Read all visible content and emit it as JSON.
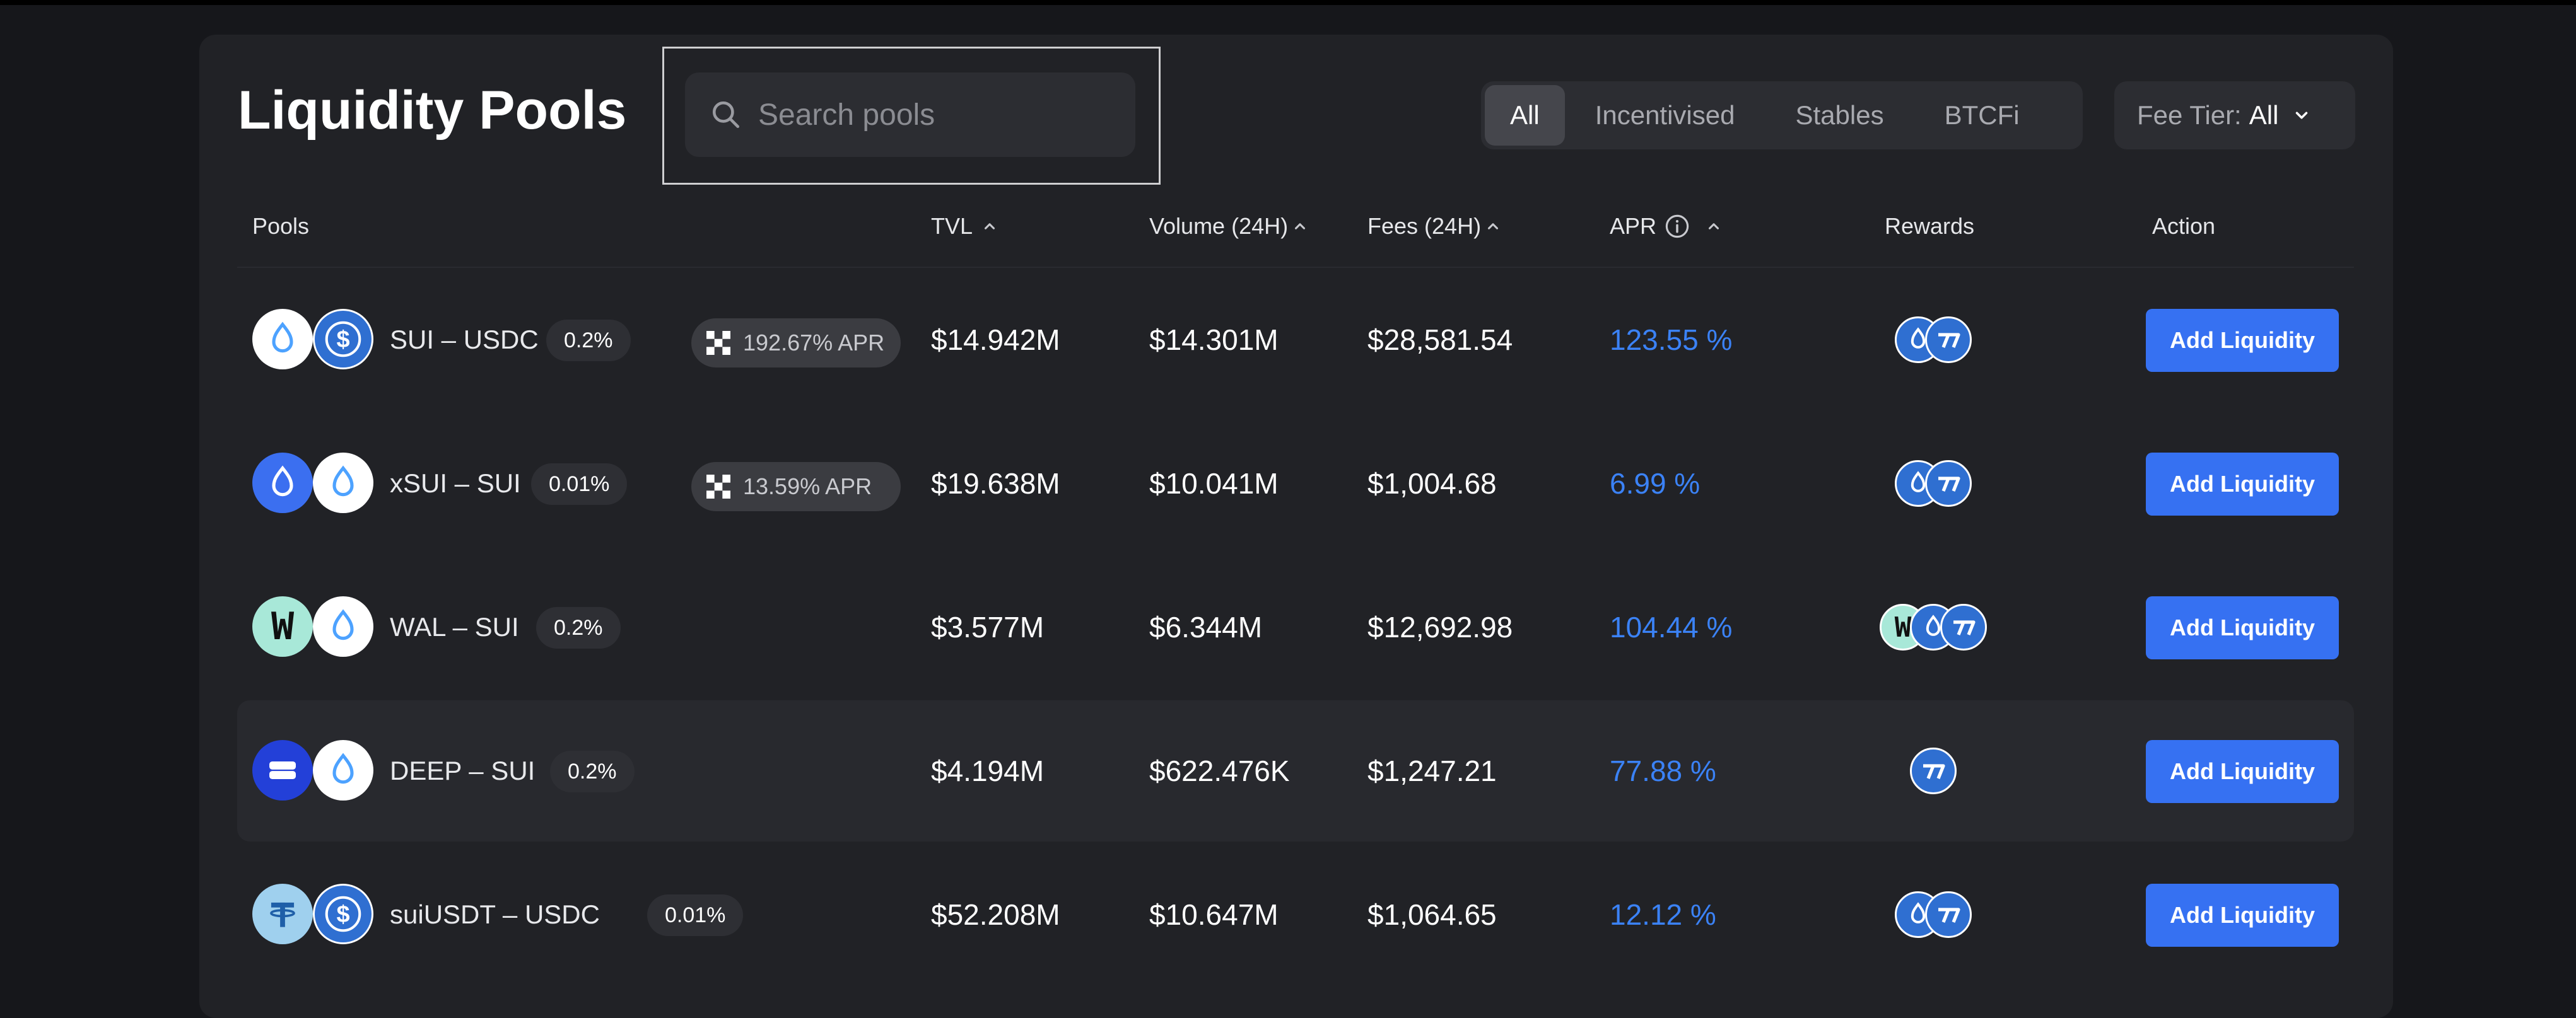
{
  "page": {
    "title": "Liquidity Pools"
  },
  "search": {
    "placeholder": "Search pools",
    "value": ""
  },
  "filters": {
    "tabs": [
      "All",
      "Incentivised",
      "Stables",
      "BTCFi"
    ],
    "active": "All"
  },
  "fee_tier": {
    "label": "Fee Tier:",
    "value": "All"
  },
  "columns": {
    "pools": "Pools",
    "tvl": "TVL",
    "volume": "Volume (24H)",
    "fees": "Fees (24H)",
    "apr": "APR",
    "rewards": "Rewards",
    "action": "Action"
  },
  "colors": {
    "accent": "#3671f2",
    "apr_text": "#3b82f6",
    "background": "#16171b",
    "card": "#212226"
  },
  "pools": [
    {
      "pair": "SUI – USDC",
      "tokens": [
        "sui",
        "usdc"
      ],
      "fee": "0.2%",
      "incentive_apr": "192.67% APR",
      "tvl": "$14.942M",
      "volume": "$14.301M",
      "fees": "$28,581.54",
      "apr": "123.55 %",
      "rewards": [
        "sui",
        "turbos"
      ],
      "action": "Add Liquidity"
    },
    {
      "pair": "xSUI – SUI",
      "tokens": [
        "xsui",
        "sui"
      ],
      "fee": "0.01%",
      "incentive_apr": "13.59% APR",
      "tvl": "$19.638M",
      "volume": "$10.041M",
      "fees": "$1,004.68",
      "apr": "6.99 %",
      "rewards": [
        "sui",
        "turbos"
      ],
      "action": "Add Liquidity"
    },
    {
      "pair": "WAL – SUI",
      "tokens": [
        "wal",
        "sui"
      ],
      "fee": "0.2%",
      "tvl": "$3.577M",
      "volume": "$6.344M",
      "fees": "$12,692.98",
      "apr": "104.44 %",
      "rewards": [
        "wal",
        "sui",
        "turbos"
      ],
      "action": "Add Liquidity"
    },
    {
      "pair": "DEEP – SUI",
      "tokens": [
        "deep",
        "sui"
      ],
      "fee": "0.2%",
      "tvl": "$4.194M",
      "volume": "$622.476K",
      "fees": "$1,247.21",
      "apr": "77.88 %",
      "rewards": [
        "turbos"
      ],
      "action": "Add Liquidity"
    },
    {
      "pair": "suiUSDT – USDC",
      "tokens": [
        "usdt",
        "usdc"
      ],
      "fee": "0.01%",
      "tvl": "$52.208M",
      "volume": "$10.647M",
      "fees": "$1,064.65",
      "apr": "12.12 %",
      "rewards": [
        "sui",
        "turbos"
      ],
      "action": "Add Liquidity"
    }
  ]
}
